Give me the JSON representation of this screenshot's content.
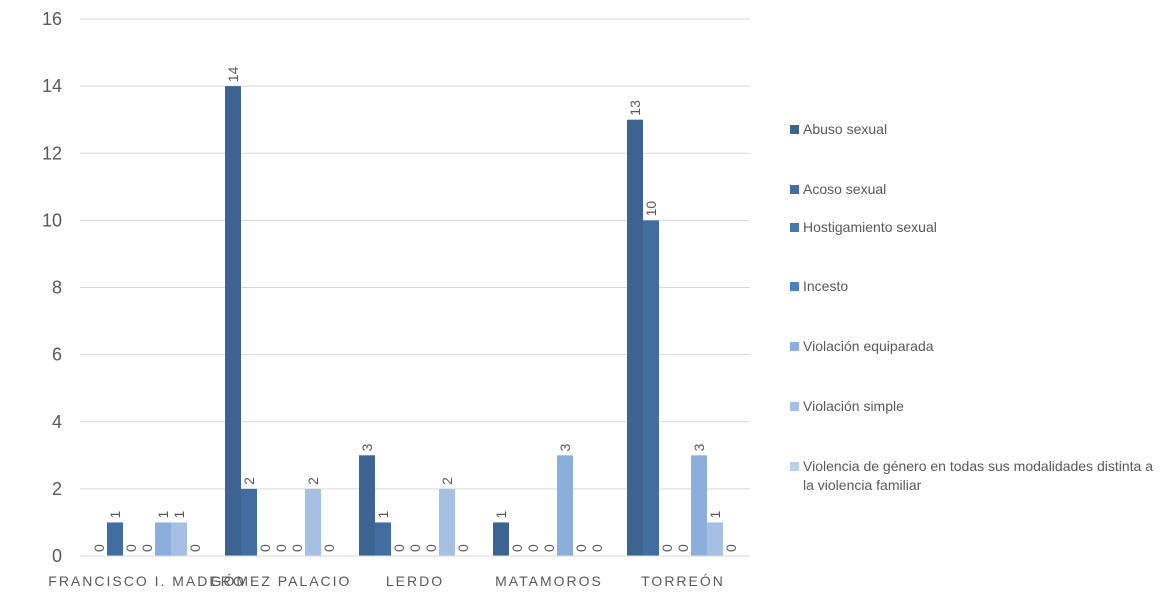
{
  "chart_data": {
    "type": "bar",
    "categories": [
      "FRANCISCO I. MADERO",
      "GÓMEZ PALACIO",
      "LERDO",
      "MATAMOROS",
      "TORREÓN"
    ],
    "ylim": [
      0,
      16
    ],
    "yticks": [
      0,
      2,
      4,
      6,
      8,
      10,
      12,
      14,
      16
    ],
    "grid": true,
    "legend_position": "right",
    "series": [
      {
        "name": "Abuso sexual",
        "color": "#3d6490",
        "values": [
          0,
          14,
          3,
          1,
          13
        ]
      },
      {
        "name": "Acoso sexual",
        "color": "#416da0",
        "values": [
          1,
          2,
          1,
          0,
          10
        ]
      },
      {
        "name": "Hostigamiento sexual",
        "color": "#4677ae",
        "values": [
          0,
          0,
          0,
          0,
          0
        ]
      },
      {
        "name": "Incesto",
        "color": "#4b80bd",
        "values": [
          0,
          0,
          0,
          0,
          0
        ]
      },
      {
        "name": "Violación equiparada",
        "color": "#8caedb",
        "values": [
          1,
          0,
          0,
          3,
          3
        ]
      },
      {
        "name": "Violación simple",
        "color": "#a6c0e3",
        "values": [
          1,
          2,
          2,
          0,
          1
        ]
      },
      {
        "name": "Violencia de género en todas sus modalidades distinta a la violencia familiar",
        "color": "#bccfea",
        "values": [
          0,
          0,
          0,
          0,
          0
        ]
      }
    ]
  }
}
